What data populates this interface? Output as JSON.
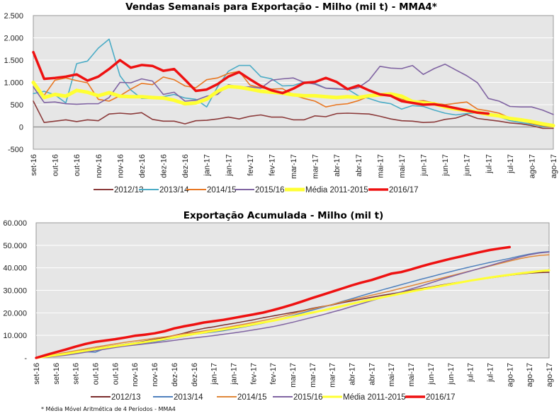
{
  "footnote": "* Média Móvel Aritmética de 4 Períodos - MMA4",
  "chart_data": [
    {
      "id": "weekly",
      "type": "line",
      "title": "Vendas Semanais para Exportação - Milho (mil t) - MMA4*",
      "xlabel": "",
      "ylabel": "",
      "ylim": [
        -500,
        2500
      ],
      "yticks": [
        -500,
        0,
        500,
        1000,
        1500,
        2000,
        2500
      ],
      "ytick_labels": [
        "-500",
        "0",
        "500",
        "1.000",
        "1.500",
        "2.000",
        "2.500"
      ],
      "grid": true,
      "legend": "bottom",
      "x_tick_labels": [
        "set-16",
        "out-16",
        "out-16",
        "nov-16",
        "nov-16",
        "dez-16",
        "dez-16",
        "dez-16",
        "jan-17",
        "jan-17",
        "fev-17",
        "fev-17",
        "mar-17",
        "mar-17",
        "abr-17",
        "abr-17",
        "mai-17",
        "mai-17",
        "jun-17",
        "jun-17",
        "jun-17",
        "jul-17",
        "jul-17",
        "ago-17",
        "ago-17"
      ],
      "x_tick_every": 2,
      "n_points": 49,
      "series": [
        {
          "name": "2012/13",
          "color": "#8B3A3A",
          "width": 1.6,
          "values": [
            580,
            100,
            130,
            160,
            120,
            160,
            140,
            290,
            310,
            290,
            320,
            170,
            130,
            130,
            70,
            140,
            150,
            180,
            220,
            180,
            240,
            270,
            220,
            220,
            160,
            160,
            250,
            230,
            300,
            310,
            300,
            290,
            240,
            180,
            140,
            130,
            100,
            110,
            170,
            200,
            280,
            190,
            160,
            130,
            90,
            70,
            30,
            -30,
            -30
          ]
        },
        {
          "name": "2013/14",
          "color": "#4BACC6",
          "width": 1.6,
          "values": [
            750,
            800,
            720,
            540,
            1420,
            1480,
            1770,
            1970,
            1150,
            830,
            640,
            640,
            680,
            730,
            650,
            620,
            450,
            900,
            1250,
            1380,
            1380,
            1130,
            1080,
            920,
            930,
            1010,
            980,
            870,
            850,
            850,
            700,
            640,
            560,
            520,
            400,
            480,
            460,
            380,
            310,
            270,
            300,
            320,
            280,
            230,
            140,
            100,
            60,
            10,
            20
          ]
        },
        {
          "name": "2014/15",
          "color": "#E87722",
          "width": 1.6,
          "values": [
            960,
            710,
            1050,
            1100,
            1040,
            990,
            620,
            580,
            700,
            850,
            980,
            950,
            1120,
            1060,
            920,
            880,
            1060,
            1100,
            1200,
            1250,
            940,
            880,
            850,
            860,
            720,
            640,
            580,
            450,
            500,
            520,
            590,
            690,
            720,
            700,
            620,
            580,
            590,
            540,
            500,
            530,
            560,
            400,
            360,
            310,
            200,
            150,
            80,
            30,
            0
          ]
        },
        {
          "name": "2015/16",
          "color": "#8064A2",
          "width": 1.6,
          "values": [
            900,
            550,
            560,
            520,
            510,
            520,
            520,
            660,
            1000,
            990,
            1080,
            1030,
            730,
            780,
            580,
            600,
            690,
            730,
            950,
            890,
            900,
            870,
            1050,
            1080,
            1100,
            1000,
            960,
            870,
            860,
            840,
            880,
            1050,
            1360,
            1320,
            1310,
            1380,
            1180,
            1310,
            1410,
            1280,
            1150,
            990,
            640,
            580,
            460,
            450,
            450,
            380,
            280
          ]
        },
        {
          "name": "Média 2011-2015",
          "color": "#FFFF33",
          "width": 5,
          "values": [
            1000,
            660,
            730,
            690,
            820,
            780,
            700,
            770,
            690,
            680,
            680,
            660,
            650,
            600,
            520,
            540,
            620,
            800,
            910,
            890,
            850,
            800,
            780,
            760,
            720,
            700,
            700,
            680,
            660,
            680,
            660,
            700,
            720,
            740,
            690,
            570,
            540,
            520,
            450,
            400,
            370,
            330,
            280,
            250,
            190,
            160,
            120,
            70,
            30
          ]
        },
        {
          "name": "2016/17",
          "color": "#EE1111",
          "width": 3.5,
          "values": [
            1680,
            1080,
            1100,
            1130,
            1180,
            1040,
            1130,
            1300,
            1500,
            1330,
            1390,
            1370,
            1260,
            1300,
            1060,
            810,
            840,
            960,
            1130,
            1230,
            1070,
            920,
            820,
            760,
            860,
            990,
            1010,
            1100,
            1010,
            850,
            930,
            820,
            730,
            700,
            580,
            540,
            500,
            510,
            470,
            420,
            370,
            320,
            300
          ]
        }
      ]
    },
    {
      "id": "cumulative",
      "type": "line",
      "title": "Exportação Acumulada - Milho (mil t)",
      "xlabel": "",
      "ylabel": "",
      "ylim": [
        0,
        60000
      ],
      "yticks": [
        0,
        10000,
        20000,
        30000,
        40000,
        50000,
        60000
      ],
      "ytick_labels": [
        "-",
        "10.000",
        "20.000",
        "30.000",
        "40.000",
        "50.000",
        "60.000"
      ],
      "grid": true,
      "legend": "bottom",
      "x_tick_labels": [
        "set-16",
        "set-16",
        "set-16",
        "out-16",
        "out-16",
        "nov-16",
        "nov-16",
        "dez-16",
        "dez-16",
        "jan-17",
        "jan-17",
        "fev-17",
        "fev-17",
        "mar-17",
        "mar-17",
        "mar-17",
        "abr-17",
        "abr-17",
        "mai-17",
        "mai-17",
        "jun-17",
        "jun-17",
        "jul-17",
        "jul-17",
        "ago-17",
        "ago-17",
        "ago-17"
      ],
      "x_tick_every": 2,
      "n_points": 53,
      "series": [
        {
          "name": "2012/13",
          "color": "#7B2C2C",
          "width": 1.5,
          "values": [
            0,
            600,
            1200,
            1900,
            2700,
            3500,
            4200,
            4900,
            5500,
            6100,
            6700,
            7400,
            8200,
            9000,
            10000,
            11000,
            12200,
            13100,
            13800,
            14600,
            15300,
            16100,
            16900,
            17800,
            18600,
            19400,
            20200,
            21000,
            22000,
            22800,
            23500,
            24500,
            25300,
            26100,
            26900,
            27700,
            28400,
            29200,
            30000,
            30800,
            31500,
            32300,
            33000,
            33700,
            34300,
            34900,
            35500,
            36100,
            36700,
            37200,
            37600,
            37900,
            38000
          ]
        },
        {
          "name": "2013/14",
          "color": "#4F81BD",
          "width": 1.5,
          "values": [
            0,
            400,
            900,
            1500,
            2200,
            2700,
            2500,
            4200,
            5000,
            5500,
            6000,
            6600,
            7200,
            7900,
            8800,
            9600,
            10400,
            11000,
            11500,
            12100,
            12900,
            13700,
            14500,
            15400,
            16500,
            17600,
            18800,
            20000,
            21200,
            22400,
            23700,
            25000,
            26300,
            27600,
            28900,
            30100,
            31300,
            32500,
            33700,
            34900,
            36000,
            37200,
            38300,
            39400,
            40400,
            41400,
            42400,
            43300,
            44200,
            45200,
            46100,
            46800,
            47200
          ]
        },
        {
          "name": "2014/15",
          "color": "#E0883A",
          "width": 1.5,
          "values": [
            0,
            800,
            1600,
            2400,
            3200,
            4000,
            4800,
            5500,
            6200,
            6900,
            7500,
            8100,
            8700,
            9300,
            10000,
            10700,
            11300,
            11900,
            12500,
            13300,
            14100,
            14900,
            15700,
            16600,
            17500,
            18500,
            19600,
            20700,
            21700,
            22700,
            23700,
            24800,
            25800,
            26800,
            27800,
            28800,
            29800,
            30900,
            32000,
            33100,
            34200,
            35300,
            36400,
            37500,
            38600,
            39700,
            40800,
            41900,
            43000,
            44000,
            44900,
            45500,
            45800
          ]
        },
        {
          "name": "2015/16",
          "color": "#8064A2",
          "width": 1.5,
          "values": [
            0,
            300,
            700,
            1200,
            1800,
            2500,
            3200,
            3900,
            4600,
            5200,
            5700,
            6200,
            6700,
            7200,
            7800,
            8400,
            8900,
            9400,
            9900,
            10500,
            11100,
            11700,
            12400,
            13100,
            13900,
            14800,
            15800,
            16900,
            18000,
            19100,
            20300,
            21500,
            22800,
            24100,
            25400,
            26700,
            28000,
            29300,
            30600,
            31900,
            33300,
            34700,
            36000,
            37300,
            38500,
            39800,
            41000,
            42300,
            43500,
            44700,
            45800,
            46600,
            47000
          ]
        },
        {
          "name": "Média 2011-2015",
          "color": "#FFFF33",
          "width": 3,
          "values": [
            0,
            600,
            1200,
            1800,
            2500,
            3200,
            3900,
            4600,
            5200,
            5800,
            6400,
            7000,
            7700,
            8400,
            9100,
            9900,
            10600,
            11300,
            12000,
            12700,
            13400,
            14100,
            14900,
            15700,
            16500,
            17400,
            18300,
            19200,
            20100,
            21000,
            22000,
            23000,
            24000,
            25000,
            25900,
            26800,
            27700,
            28600,
            29500,
            30300,
            31100,
            31900,
            32700,
            33500,
            34300,
            35000,
            35700,
            36300,
            36900,
            37500,
            38000,
            38500,
            38900
          ]
        },
        {
          "name": "2016/17",
          "color": "#EE1111",
          "width": 3.5,
          "values": [
            0,
            1300,
            2500,
            3700,
            5000,
            6200,
            7100,
            7700,
            8300,
            9000,
            9800,
            10300,
            10900,
            11800,
            13100,
            14000,
            14800,
            15700,
            16300,
            16900,
            17700,
            18500,
            19300,
            20100,
            21200,
            22400,
            23700,
            25100,
            26600,
            28000,
            29400,
            30800,
            32200,
            33500,
            34600,
            36000,
            37400,
            38100,
            39300,
            40600,
            41800,
            42900,
            44000,
            45000,
            46000,
            47000,
            47900,
            48600,
            49200
          ]
        }
      ]
    }
  ]
}
